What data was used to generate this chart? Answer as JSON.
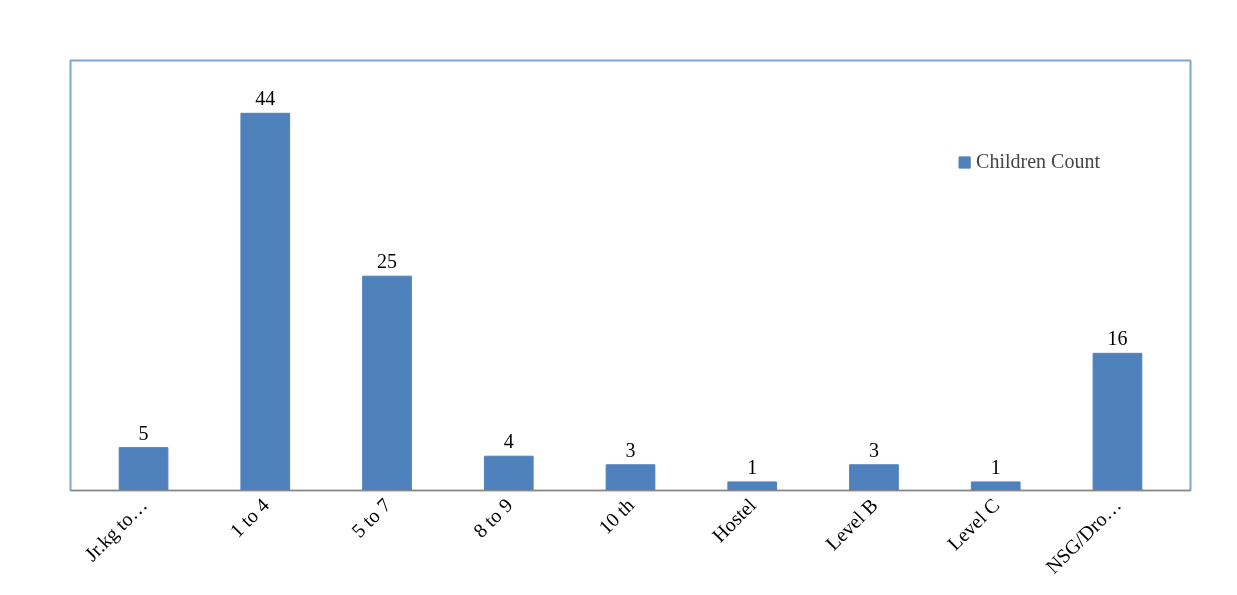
{
  "chart_data": {
    "type": "bar",
    "categories": [
      "Jr.kg to…",
      "1 to 4",
      "5 to 7",
      "8 to 9",
      "10 th",
      "Hostel",
      "Level B",
      "Level C",
      "NSG/Dro…"
    ],
    "series": [
      {
        "name": "Children Count",
        "color": "#4f81bd",
        "values": [
          5,
          44,
          25,
          4,
          3,
          1,
          3,
          1,
          16
        ]
      }
    ],
    "data_labels": true,
    "legend": "top right",
    "grid": false
  }
}
